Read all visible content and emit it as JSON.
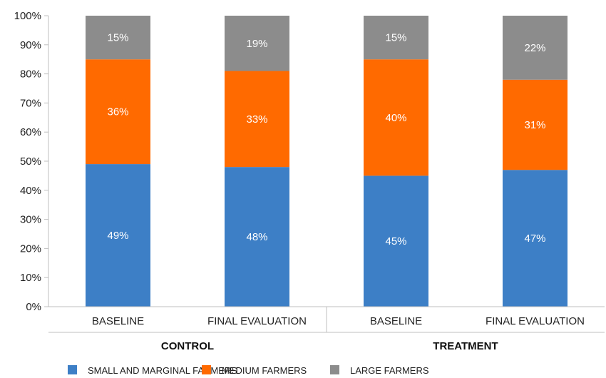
{
  "chart_data": {
    "type": "bar",
    "stacked": true,
    "percent": true,
    "categories": [
      "BASELINE",
      "FINAL EVALUATION",
      "BASELINE",
      "FINAL EVALUATION"
    ],
    "groups": [
      {
        "label": "CONTROL",
        "categories": [
          0,
          1
        ]
      },
      {
        "label": "TREATMENT",
        "categories": [
          2,
          3
        ]
      }
    ],
    "series": [
      {
        "name": "SMALL AND MARGINAL FARMERS",
        "color": "#3d7fc6",
        "values": [
          49,
          48,
          45,
          47
        ]
      },
      {
        "name": "MEDIUM FARMERS",
        "color": "#ff6a00",
        "values": [
          36,
          33,
          40,
          31
        ]
      },
      {
        "name": "LARGE FARMERS",
        "color": "#8c8c8c",
        "values": [
          15,
          19,
          15,
          22
        ]
      }
    ],
    "ylim": [
      0,
      100
    ],
    "yticks": [
      "0%",
      "10%",
      "20%",
      "30%",
      "40%",
      "50%",
      "60%",
      "70%",
      "80%",
      "90%",
      "100%"
    ],
    "grid": false,
    "legend": "bottom"
  }
}
